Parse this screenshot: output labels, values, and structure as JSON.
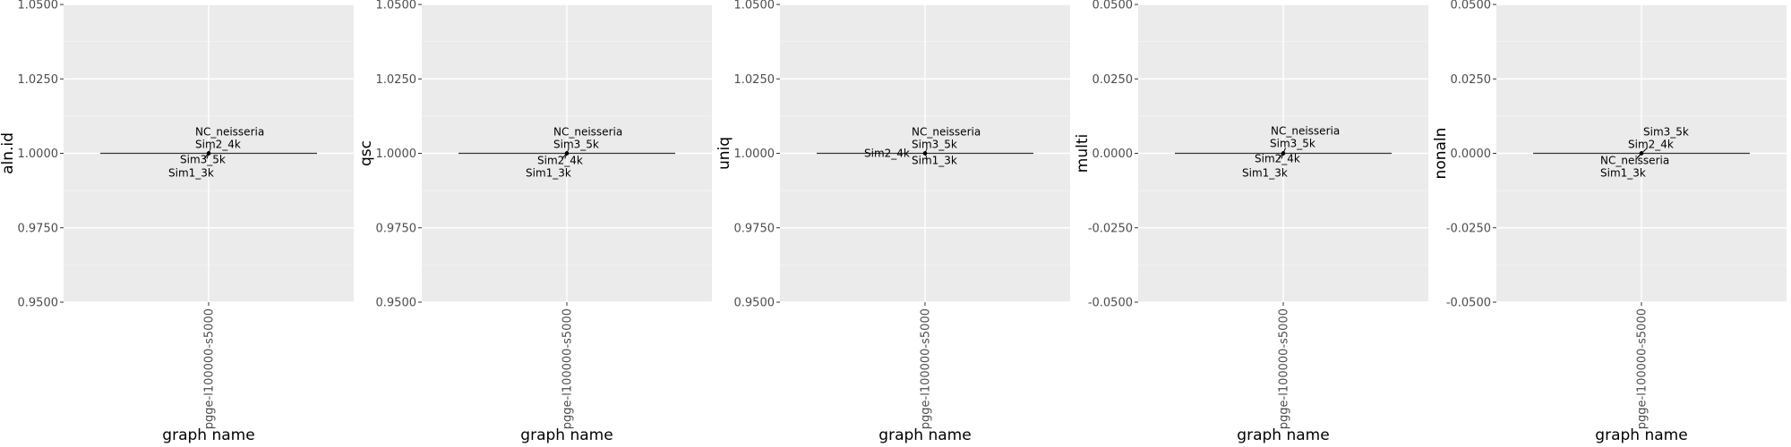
{
  "chart_data": [
    {
      "type": "box",
      "ylabel": "aln.id",
      "xlabel": "graph name",
      "categories": [
        "pgge-l100000-s5000"
      ],
      "ylim": [
        0.95,
        1.05
      ],
      "yticks": [
        "0.9500",
        "0.9750",
        "1.0000",
        "1.0250",
        "1.0500"
      ],
      "ytick_values": [
        0.95,
        0.975,
        1.0,
        1.025,
        1.05
      ],
      "box": {
        "min": 1.0,
        "q1": 1.0,
        "median": 1.0,
        "q3": 1.0,
        "max": 1.0
      },
      "points": [
        {
          "label": "NC_neisseria",
          "y": 1.0
        },
        {
          "label": "Sim2_4k",
          "y": 1.0
        },
        {
          "label": "Sim3_5k",
          "y": 1.0
        },
        {
          "label": "Sim1_3k",
          "y": 1.0
        }
      ]
    },
    {
      "type": "box",
      "ylabel": "qsc",
      "xlabel": "graph name",
      "categories": [
        "pgge-l100000-s5000"
      ],
      "ylim": [
        0.95,
        1.05
      ],
      "yticks": [
        "0.9500",
        "0.9750",
        "1.0000",
        "1.0250",
        "1.0500"
      ],
      "ytick_values": [
        0.95,
        0.975,
        1.0,
        1.025,
        1.05
      ],
      "box": {
        "min": 1.0,
        "q1": 1.0,
        "median": 1.0,
        "q3": 1.0,
        "max": 1.0
      },
      "points": [
        {
          "label": "NC_neisseria",
          "y": 1.0
        },
        {
          "label": "Sim3_5k",
          "y": 1.0
        },
        {
          "label": "Sim2_4k",
          "y": 1.0
        },
        {
          "label": "Sim1_3k",
          "y": 1.0
        }
      ]
    },
    {
      "type": "box",
      "ylabel": "uniq",
      "xlabel": "graph name",
      "categories": [
        "pgge-l100000-s5000"
      ],
      "ylim": [
        0.95,
        1.05
      ],
      "yticks": [
        "0.9500",
        "0.9750",
        "1.0000",
        "1.0250",
        "1.0500"
      ],
      "ytick_values": [
        0.95,
        0.975,
        1.0,
        1.025,
        1.05
      ],
      "box": {
        "min": 1.0,
        "q1": 1.0,
        "median": 1.0,
        "q3": 1.0,
        "max": 1.0
      },
      "points": [
        {
          "label": "NC_neisseria",
          "y": 1.0
        },
        {
          "label": "Sim3_5k",
          "y": 1.0
        },
        {
          "label": "Sim2_4k",
          "y": 1.0
        },
        {
          "label": "Sim1_3k",
          "y": 1.0
        }
      ]
    },
    {
      "type": "box",
      "ylabel": "multi",
      "xlabel": "graph name",
      "categories": [
        "pgge-l100000-s5000"
      ],
      "ylim": [
        -0.05,
        0.05
      ],
      "yticks": [
        "-0.0500",
        "-0.0250",
        "0.0000",
        "0.0250",
        "0.0500"
      ],
      "ytick_values": [
        -0.05,
        -0.025,
        0.0,
        0.025,
        0.05
      ],
      "box": {
        "min": 0.0,
        "q1": 0.0,
        "median": 0.0,
        "q3": 0.0,
        "max": 0.0
      },
      "points": [
        {
          "label": "NC_neisseria",
          "y": 0.0
        },
        {
          "label": "Sim3_5k",
          "y": 0.0
        },
        {
          "label": "Sim2_4k",
          "y": 0.0
        },
        {
          "label": "Sim1_3k",
          "y": 0.0
        }
      ]
    },
    {
      "type": "box",
      "ylabel": "nonaln",
      "xlabel": "graph name",
      "categories": [
        "pgge-l100000-s5000"
      ],
      "ylim": [
        -0.05,
        0.05
      ],
      "yticks": [
        "-0.0500",
        "-0.0250",
        "0.0000",
        "0.0250",
        "0.0500"
      ],
      "ytick_values": [
        -0.05,
        -0.025,
        0.0,
        0.025,
        0.05
      ],
      "box": {
        "min": 0.0,
        "q1": 0.0,
        "median": 0.0,
        "q3": 0.0,
        "max": 0.0
      },
      "points": [
        {
          "label": "Sim3_5k",
          "y": 0.0
        },
        {
          "label": "Sim2_4k",
          "y": 0.0
        },
        {
          "label": "NC_neisseria",
          "y": 0.0
        },
        {
          "label": "Sim1_3k",
          "y": 0.0
        }
      ]
    }
  ]
}
